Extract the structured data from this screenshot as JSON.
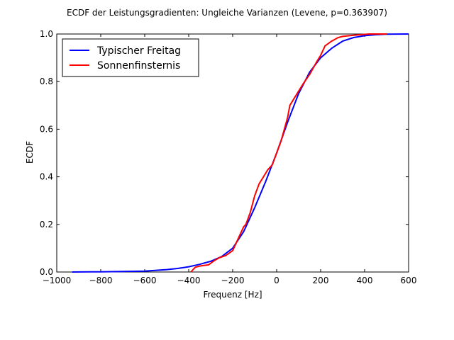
{
  "chart_data": {
    "type": "line",
    "title": "ECDF der Leistungsgradienten: Ungleiche Varianzen (Levene, p=0.363907)",
    "xlabel": "Frequenz [Hz]",
    "ylabel": "ECDF",
    "xlim": [
      -1000,
      600
    ],
    "ylim": [
      0.0,
      1.0
    ],
    "x_ticks": [
      -1000,
      -800,
      -600,
      -400,
      -200,
      0,
      200,
      400,
      600
    ],
    "x_tick_labels": [
      "−1000",
      "−800",
      "−600",
      "−400",
      "−200",
      "0",
      "200",
      "400",
      "600"
    ],
    "y_ticks": [
      0.0,
      0.2,
      0.4,
      0.6,
      0.8,
      1.0
    ],
    "y_tick_labels": [
      "0.0",
      "0.2",
      "0.4",
      "0.6",
      "0.8",
      "1.0"
    ],
    "grid": false,
    "legend_position": "top-left",
    "series": [
      {
        "name": "Typischer Freitag",
        "color": "#0000ff",
        "x": [
          -930,
          -800,
          -700,
          -600,
          -500,
          -450,
          -400,
          -350,
          -300,
          -250,
          -200,
          -150,
          -100,
          -50,
          0,
          50,
          100,
          150,
          200,
          250,
          300,
          350,
          400,
          450,
          500,
          600
        ],
        "y": [
          0.0,
          0.001,
          0.002,
          0.004,
          0.01,
          0.015,
          0.022,
          0.032,
          0.045,
          0.065,
          0.1,
          0.17,
          0.27,
          0.38,
          0.5,
          0.63,
          0.75,
          0.84,
          0.9,
          0.94,
          0.97,
          0.985,
          0.993,
          0.997,
          0.999,
          1.0
        ]
      },
      {
        "name": "Sonnenfinsternis",
        "color": "#ff0000",
        "x": [
          -390,
          -370,
          -350,
          -310,
          -280,
          -260,
          -230,
          -200,
          -170,
          -150,
          -140,
          -120,
          -100,
          -80,
          -60,
          -40,
          -20,
          0,
          20,
          50,
          60,
          80,
          100,
          120,
          150,
          180,
          200,
          220,
          250,
          280,
          300,
          330,
          350,
          380,
          420,
          500
        ],
        "y": [
          0.0,
          0.02,
          0.025,
          0.03,
          0.05,
          0.06,
          0.07,
          0.09,
          0.15,
          0.19,
          0.2,
          0.25,
          0.32,
          0.37,
          0.4,
          0.43,
          0.45,
          0.5,
          0.55,
          0.65,
          0.7,
          0.73,
          0.76,
          0.79,
          0.83,
          0.88,
          0.91,
          0.95,
          0.97,
          0.985,
          0.99,
          0.993,
          0.995,
          0.997,
          1.0,
          1.0
        ]
      }
    ]
  }
}
